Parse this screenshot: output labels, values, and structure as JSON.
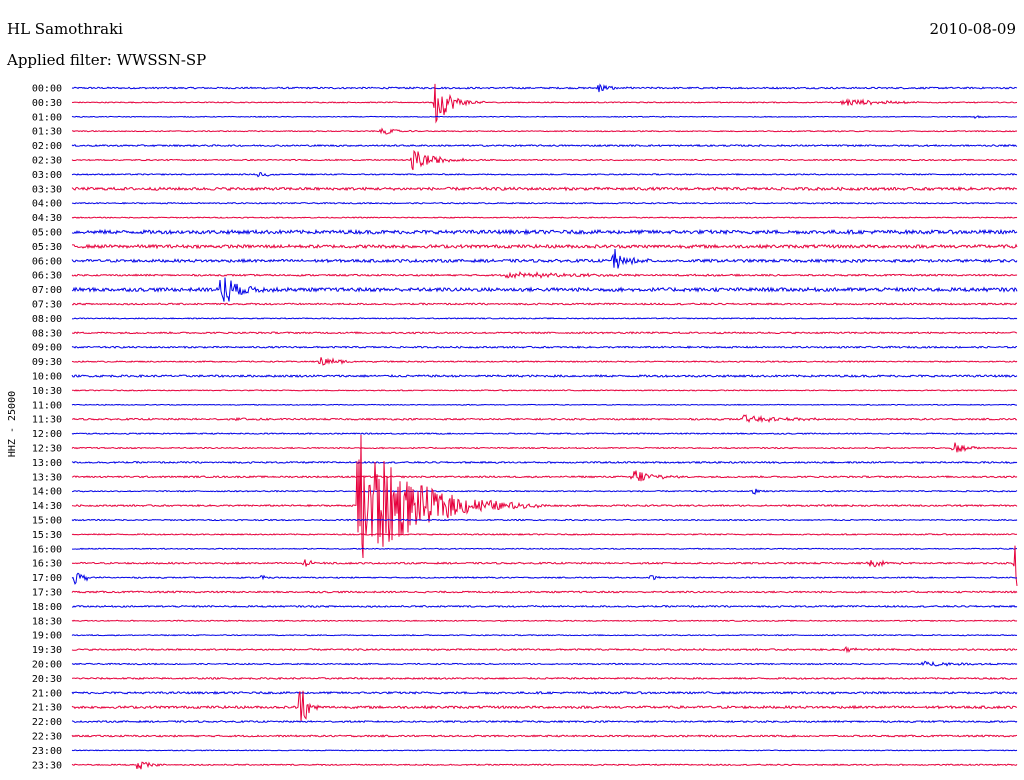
{
  "station": "HL Samothraki",
  "date": "2010-08-09",
  "filter_label": "Applied filter: WWSSN-SP",
  "chart_data": {
    "type": "line",
    "ylabel": "HHZ - 25000",
    "row_labels": [
      "00:00",
      "00:30",
      "01:00",
      "01:30",
      "02:00",
      "02:30",
      "03:00",
      "03:30",
      "04:00",
      "04:30",
      "05:00",
      "05:30",
      "06:00",
      "06:30",
      "07:00",
      "07:30",
      "08:00",
      "08:30",
      "09:00",
      "09:30",
      "10:00",
      "10:30",
      "11:00",
      "11:30",
      "12:00",
      "12:30",
      "13:00",
      "13:30",
      "14:00",
      "14:30",
      "15:00",
      "15:30",
      "16:00",
      "16:30",
      "17:00",
      "17:30",
      "18:00",
      "18:30",
      "19:00",
      "19:30",
      "20:00",
      "20:30",
      "21:00",
      "21:30",
      "22:00",
      "22:30",
      "23:00",
      "23:30"
    ],
    "colors": [
      "#0000e6",
      "#e6003c"
    ],
    "noise": [
      0.8,
      0.5,
      0.4,
      0.5,
      0.8,
      0.6,
      0.6,
      1.4,
      0.6,
      0.5,
      1.8,
      1.6,
      1.4,
      0.8,
      1.8,
      0.8,
      0.5,
      0.8,
      0.8,
      0.6,
      1.0,
      0.5,
      0.4,
      0.8,
      0.6,
      0.6,
      0.8,
      0.8,
      0.6,
      0.8,
      0.6,
      0.6,
      0.5,
      0.8,
      0.6,
      0.8,
      0.8,
      0.5,
      0.5,
      0.8,
      0.6,
      0.8,
      1.0,
      1.2,
      0.8,
      0.8,
      0.4,
      0.6
    ],
    "events": [
      {
        "row": 0,
        "pos": 0.557,
        "amp": 6,
        "dur": 0.01
      },
      {
        "row": 1,
        "pos": 0.384,
        "amp": 24,
        "dur": 0.015
      },
      {
        "row": 1,
        "pos": 0.815,
        "amp": 4,
        "dur": 0.04
      },
      {
        "row": 2,
        "pos": 0.956,
        "amp": 2,
        "dur": 0.006
      },
      {
        "row": 3,
        "pos": 0.327,
        "amp": 5,
        "dur": 0.012
      },
      {
        "row": 5,
        "pos": 0.36,
        "amp": 12,
        "dur": 0.02
      },
      {
        "row": 6,
        "pos": 0.197,
        "amp": 4,
        "dur": 0.01
      },
      {
        "row": 12,
        "pos": 0.572,
        "amp": 18,
        "dur": 0.008
      },
      {
        "row": 12,
        "pos": 0.588,
        "amp": 5,
        "dur": 0.012
      },
      {
        "row": 13,
        "pos": 0.46,
        "amp": 3,
        "dur": 0.08
      },
      {
        "row": 14,
        "pos": 0.157,
        "amp": 22,
        "dur": 0.015
      },
      {
        "row": 19,
        "pos": 0.262,
        "amp": 5,
        "dur": 0.018
      },
      {
        "row": 23,
        "pos": 0.71,
        "amp": 4,
        "dur": 0.04
      },
      {
        "row": 23,
        "pos": 0.173,
        "amp": 2,
        "dur": 0.02
      },
      {
        "row": 25,
        "pos": 0.932,
        "amp": 7,
        "dur": 0.012
      },
      {
        "row": 27,
        "pos": 0.592,
        "amp": 10,
        "dur": 0.018
      },
      {
        "row": 28,
        "pos": 0.72,
        "amp": 5,
        "dur": 0.006
      },
      {
        "row": 29,
        "pos": 0.302,
        "amp": 80,
        "dur": 0.05
      },
      {
        "row": 33,
        "pos": 0.244,
        "amp": 6,
        "dur": 0.008
      },
      {
        "row": 33,
        "pos": 0.842,
        "amp": 5,
        "dur": 0.015
      },
      {
        "row": 33,
        "pos": 0.998,
        "amp": 40,
        "dur": 0.004
      },
      {
        "row": 34,
        "pos": 0.003,
        "amp": 8,
        "dur": 0.01
      },
      {
        "row": 34,
        "pos": 0.2,
        "amp": 3,
        "dur": 0.005
      },
      {
        "row": 34,
        "pos": 0.612,
        "amp": 3,
        "dur": 0.01
      },
      {
        "row": 39,
        "pos": 0.817,
        "amp": 3,
        "dur": 0.02
      },
      {
        "row": 40,
        "pos": 0.9,
        "amp": 3,
        "dur": 0.03
      },
      {
        "row": 43,
        "pos": 0.241,
        "amp": 36,
        "dur": 0.006
      },
      {
        "row": 47,
        "pos": 0.069,
        "amp": 7,
        "dur": 0.01
      }
    ]
  }
}
